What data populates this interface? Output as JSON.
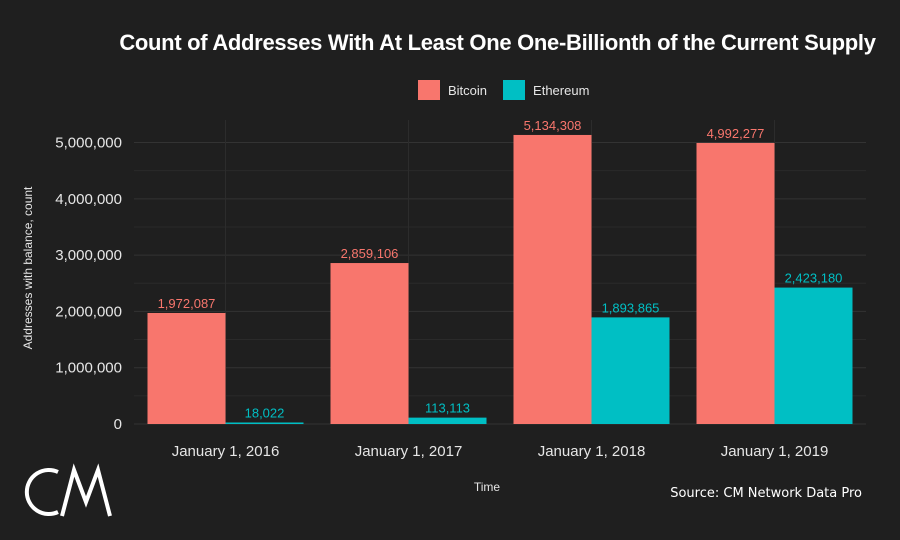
{
  "chart_data": {
    "type": "bar",
    "title": "Count of Addresses With At Least One One-Billionth of the Current Supply",
    "xlabel": "Time",
    "ylabel": "Addresses with balance, count",
    "categories": [
      "January 1, 2016",
      "January 1, 2017",
      "January 1, 2018",
      "January 1, 2019"
    ],
    "series": [
      {
        "name": "Bitcoin",
        "color": "#f8766d",
        "values": [
          1972087,
          2859106,
          5134308,
          4992277
        ],
        "labels": [
          "1,972,087",
          "2,859,106",
          "5,134,308",
          "4,992,277"
        ]
      },
      {
        "name": "Ethereum",
        "color": "#00bfc4",
        "values": [
          18022,
          113113,
          1893865,
          2423180
        ],
        "labels": [
          "18,022",
          "113,113",
          "1,893,865",
          "2,423,180"
        ]
      }
    ],
    "ylim": [
      0,
      5400000
    ],
    "yticks": [
      0,
      1000000,
      2000000,
      3000000,
      4000000,
      5000000
    ],
    "ytick_labels": [
      "0",
      "1,000,000",
      "2,000,000",
      "3,000,000",
      "4,000,000",
      "5,000,000"
    ],
    "grid": true,
    "legend_position": "top"
  },
  "source": "Source: CM Network Data Pro",
  "logo_text": "CM"
}
